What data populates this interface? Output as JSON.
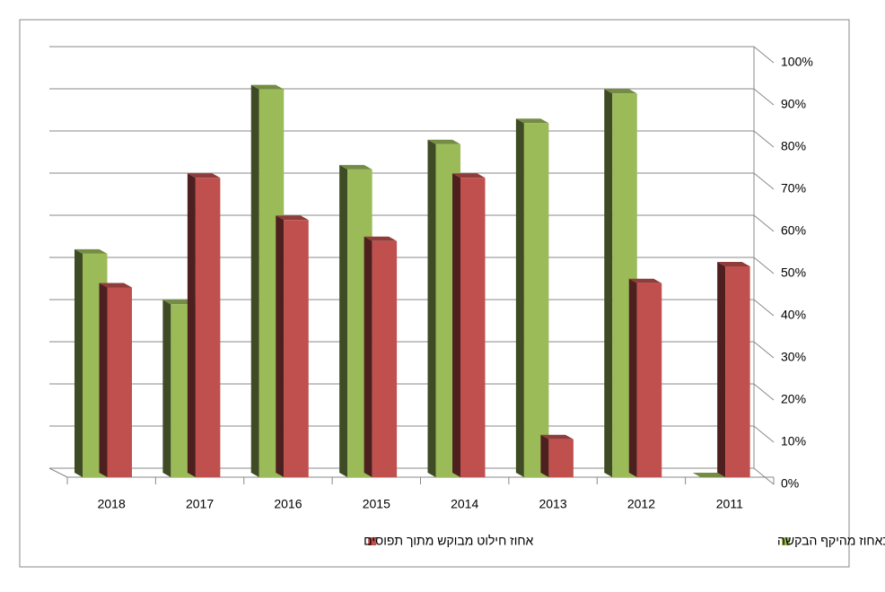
{
  "chart_data": {
    "type": "bar3d",
    "categories": [
      "2018",
      "2017",
      "2016",
      "2015",
      "2014",
      "2013",
      "2012",
      "2011"
    ],
    "series": [
      {
        "name": "הסכום שנלקח בסוף ההליך (לרבות תשלומי מיסים) כאחוז מהיקף הבקשה",
        "color": "#9bbb59",
        "values": [
          53,
          41,
          92,
          73,
          79,
          84,
          91,
          0
        ]
      },
      {
        "name": "אחוז חילוט מבוקש מתוך תפוסים",
        "color": "#c0504d",
        "values": [
          45,
          71,
          61,
          56,
          71,
          9,
          46,
          50
        ]
      }
    ],
    "ylim": [
      0,
      100
    ],
    "yticks": [
      {
        "value": 0,
        "label": "0%"
      },
      {
        "value": 10,
        "label": "10%"
      },
      {
        "value": 20,
        "label": "20%"
      },
      {
        "value": 30,
        "label": "30%"
      },
      {
        "value": 40,
        "label": "40%"
      },
      {
        "value": 50,
        "label": "50%"
      },
      {
        "value": 60,
        "label": "60%"
      },
      {
        "value": 70,
        "label": "70%"
      },
      {
        "value": 80,
        "label": "80%"
      },
      {
        "value": 90,
        "label": "90%"
      },
      {
        "value": 100,
        "label": "100%"
      }
    ],
    "grid": true
  }
}
